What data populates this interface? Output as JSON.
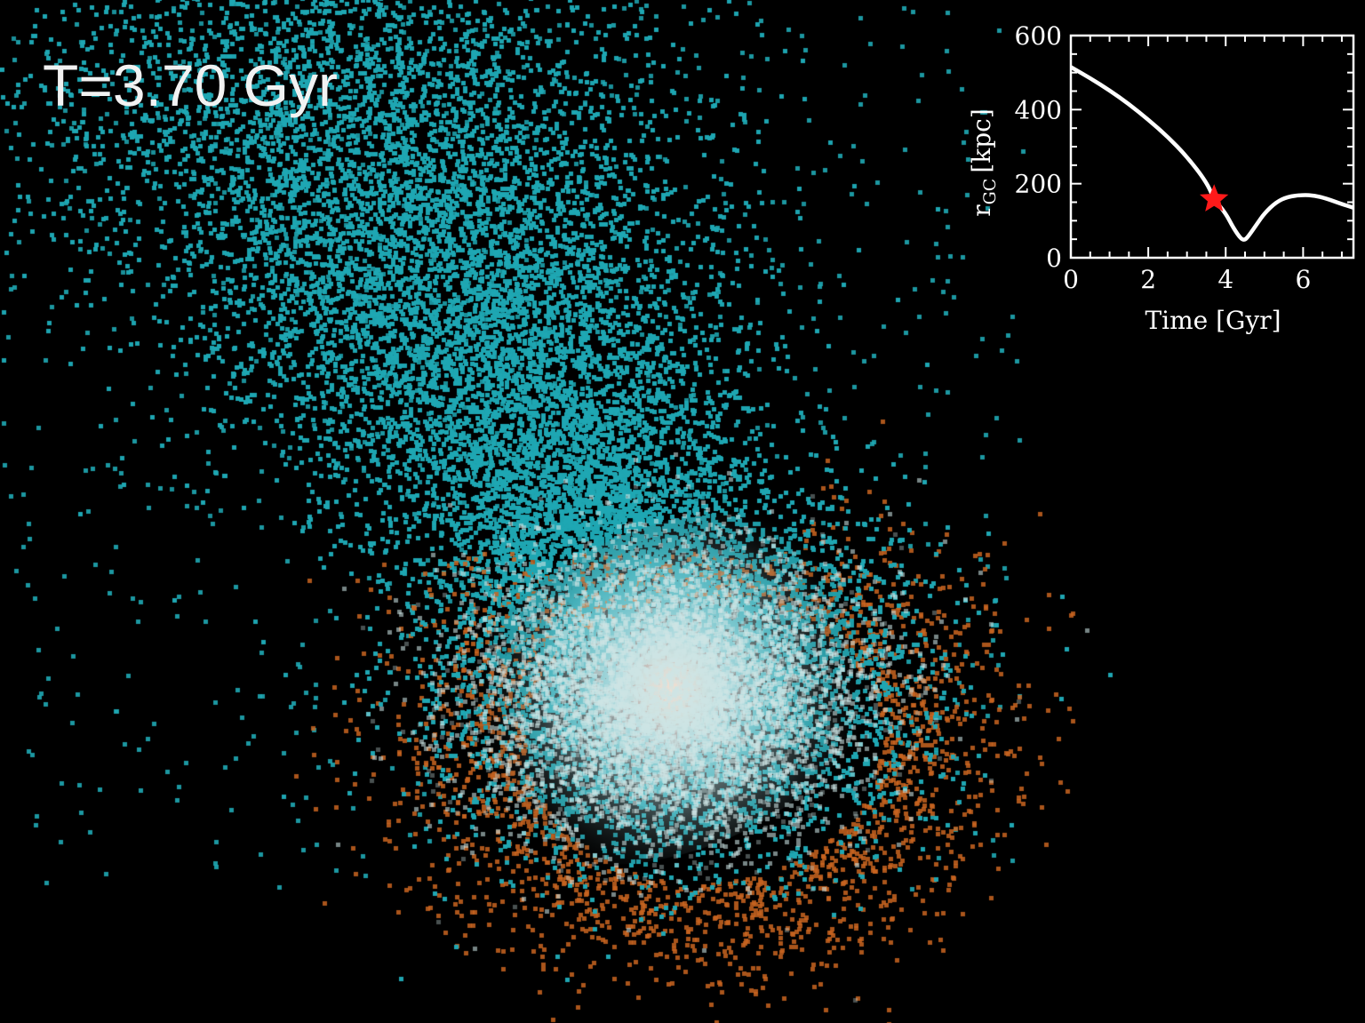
{
  "simulation": {
    "time_label": "T=3.70 Gyr",
    "colors": {
      "background": "#000000",
      "tracer_a": "#1fa7b3",
      "tracer_b": "#c86420",
      "core": "#fbe2d6"
    }
  },
  "chart_data": {
    "type": "line",
    "xlabel": "Time [Gyr]",
    "ylabel_main": "r",
    "ylabel_sub": "GC",
    "ylabel_unit": "[kpc]",
    "xlim": [
      0,
      7.3
    ],
    "ylim": [
      0,
      600
    ],
    "xticks": [
      0,
      2,
      4,
      6
    ],
    "yticks": [
      0,
      200,
      400,
      600
    ],
    "series": [
      {
        "color": "#ffffff",
        "x": [
          0,
          0.5,
          1.0,
          1.5,
          2.0,
          2.5,
          3.0,
          3.5,
          3.7,
          4.0,
          4.2,
          4.4,
          4.5,
          4.6,
          4.8,
          5.0,
          5.3,
          5.6,
          6.0,
          6.3,
          6.6,
          7.0,
          7.3
        ],
        "y": [
          515,
          485,
          452,
          415,
          373,
          327,
          273,
          205,
          158,
          120,
          80,
          50,
          48,
          60,
          90,
          120,
          150,
          165,
          170,
          168,
          160,
          145,
          135
        ]
      }
    ],
    "marker": {
      "x": 3.7,
      "y": 158,
      "symbol": "star",
      "color": "#ff1a1a"
    }
  }
}
